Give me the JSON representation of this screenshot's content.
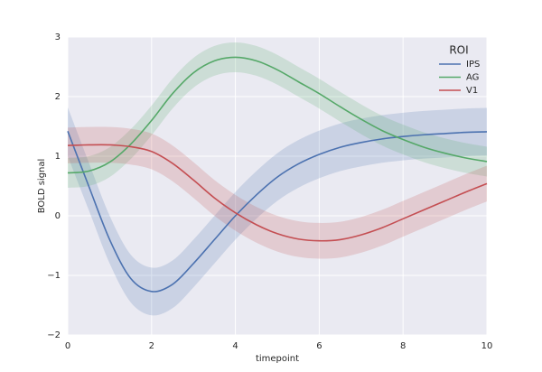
{
  "chart_data": {
    "type": "line",
    "xlabel": "timepoint",
    "ylabel": "BOLD signal",
    "x": [
      0,
      0.5,
      1,
      1.5,
      2,
      2.5,
      3,
      3.5,
      4,
      4.5,
      5,
      5.5,
      6,
      6.5,
      7,
      7.5,
      8,
      8.5,
      9,
      9.5,
      10
    ],
    "series": [
      {
        "name": "IPS",
        "color": "#4c72b0",
        "values": [
          1.42,
          0.5,
          -0.4,
          -1.05,
          -1.27,
          -1.15,
          -0.8,
          -0.4,
          0.0,
          0.35,
          0.65,
          0.87,
          1.03,
          1.15,
          1.23,
          1.29,
          1.33,
          1.36,
          1.38,
          1.4,
          1.41
        ],
        "lower": [
          1.0,
          0.1,
          -0.8,
          -1.45,
          -1.67,
          -1.55,
          -1.2,
          -0.8,
          -0.4,
          -0.05,
          0.25,
          0.47,
          0.63,
          0.75,
          0.83,
          0.89,
          0.93,
          0.96,
          0.98,
          1.0,
          1.01
        ],
        "upper": [
          1.82,
          0.9,
          0.0,
          -0.65,
          -0.87,
          -0.75,
          -0.4,
          0.0,
          0.4,
          0.75,
          1.05,
          1.27,
          1.43,
          1.55,
          1.63,
          1.69,
          1.73,
          1.76,
          1.78,
          1.8,
          1.81
        ]
      },
      {
        "name": "AG",
        "color": "#55a868",
        "values": [
          0.72,
          0.75,
          0.9,
          1.2,
          1.6,
          2.05,
          2.4,
          2.6,
          2.66,
          2.6,
          2.45,
          2.25,
          2.05,
          1.83,
          1.62,
          1.43,
          1.28,
          1.15,
          1.05,
          0.97,
          0.91
        ],
        "lower": [
          0.47,
          0.5,
          0.65,
          0.95,
          1.35,
          1.8,
          2.15,
          2.35,
          2.41,
          2.35,
          2.2,
          2.0,
          1.8,
          1.58,
          1.37,
          1.18,
          1.03,
          0.9,
          0.8,
          0.72,
          0.66
        ],
        "upper": [
          0.97,
          1.0,
          1.15,
          1.45,
          1.85,
          2.3,
          2.65,
          2.85,
          2.91,
          2.85,
          2.7,
          2.5,
          2.3,
          2.08,
          1.87,
          1.68,
          1.53,
          1.4,
          1.3,
          1.22,
          1.16
        ]
      },
      {
        "name": "V1",
        "color": "#c44e52",
        "values": [
          1.18,
          1.19,
          1.19,
          1.16,
          1.08,
          0.88,
          0.6,
          0.3,
          0.05,
          -0.15,
          -0.3,
          -0.39,
          -0.42,
          -0.4,
          -0.32,
          -0.2,
          -0.05,
          0.1,
          0.25,
          0.4,
          0.54
        ],
        "lower": [
          0.88,
          0.89,
          0.89,
          0.86,
          0.78,
          0.58,
          0.3,
          0.0,
          -0.25,
          -0.45,
          -0.6,
          -0.69,
          -0.72,
          -0.7,
          -0.62,
          -0.5,
          -0.35,
          -0.2,
          -0.05,
          0.1,
          0.24
        ],
        "upper": [
          1.48,
          1.49,
          1.49,
          1.46,
          1.38,
          1.18,
          0.9,
          0.6,
          0.35,
          0.15,
          0.0,
          -0.09,
          -0.12,
          -0.1,
          -0.02,
          0.1,
          0.25,
          0.4,
          0.55,
          0.7,
          0.84
        ]
      }
    ],
    "xlim": [
      0,
      10
    ],
    "xticks": [
      0,
      2,
      4,
      6,
      8,
      10
    ],
    "ylim": [
      -2,
      3
    ],
    "yticks": [
      {
        "value": -2,
        "label": "−2"
      },
      {
        "value": -1,
        "label": "−1"
      },
      0,
      1,
      2,
      3
    ],
    "grid": true,
    "legend_title": "ROI",
    "legend_position": "upper right"
  }
}
